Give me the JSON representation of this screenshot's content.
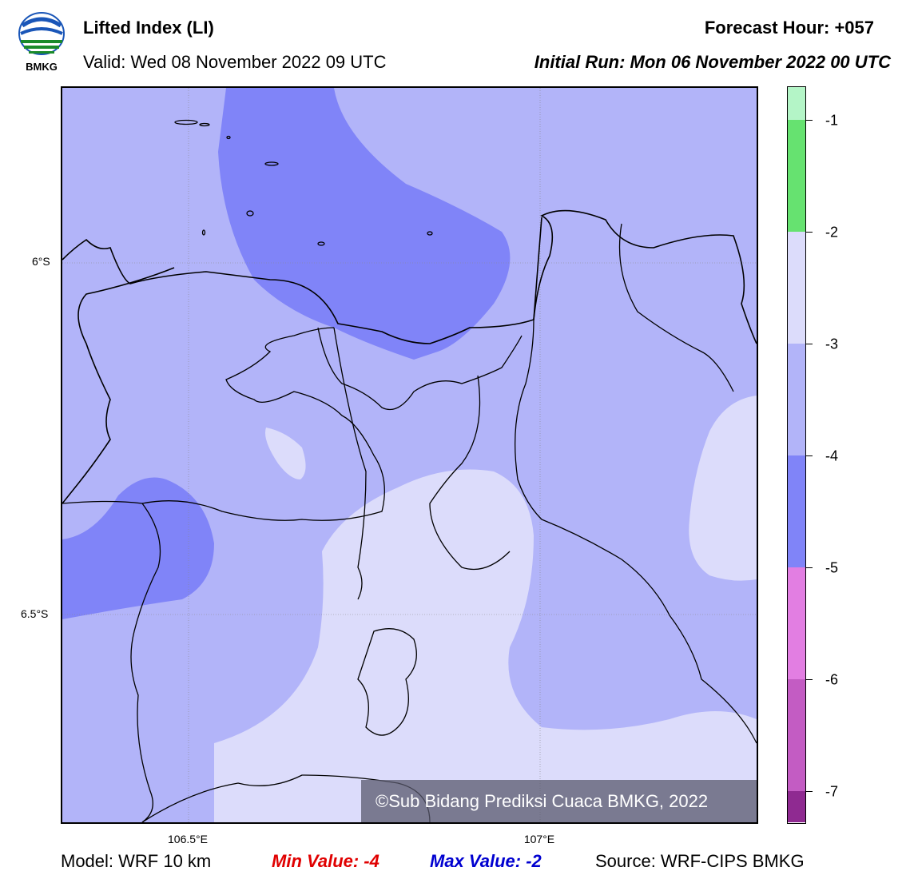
{
  "header": {
    "title": "Lifted Index (LI)",
    "valid": "Valid: Wed 08 November 2022 09 UTC",
    "forecast_hour": "Forecast Hour: +057",
    "initial_run": "Initial Run: Mon 06 November 2022 00 UTC",
    "logo_text": "BMKG"
  },
  "map": {
    "lat_labels": [
      "6°S",
      "6.5°S"
    ],
    "lon_labels": [
      "106.5°E",
      "107°E"
    ],
    "copyright": "©Sub Bidang Prediksi Cuaca BMKG, 2022",
    "fill_colors": {
      "-2_to_-3": "#dcdcfb",
      "-3_to_-4": "#b2b4f9",
      "-4_to_-5": "#8084f8"
    }
  },
  "colorbar": {
    "labels": [
      "-1",
      "-2",
      "-3",
      "-4",
      "-5",
      "-6",
      "-7"
    ],
    "colors": [
      "#b4f5c7",
      "#66e270",
      "#dcdcfb",
      "#b2b4f9",
      "#8084f8",
      "#e27ee2",
      "#c35cc3",
      "#8f2a91"
    ]
  },
  "footer": {
    "model": "Model: WRF 10 km",
    "min_value": "Min Value: -4",
    "max_value": "Max Value: -2",
    "source": "Source: WRF-CIPS BMKG"
  }
}
